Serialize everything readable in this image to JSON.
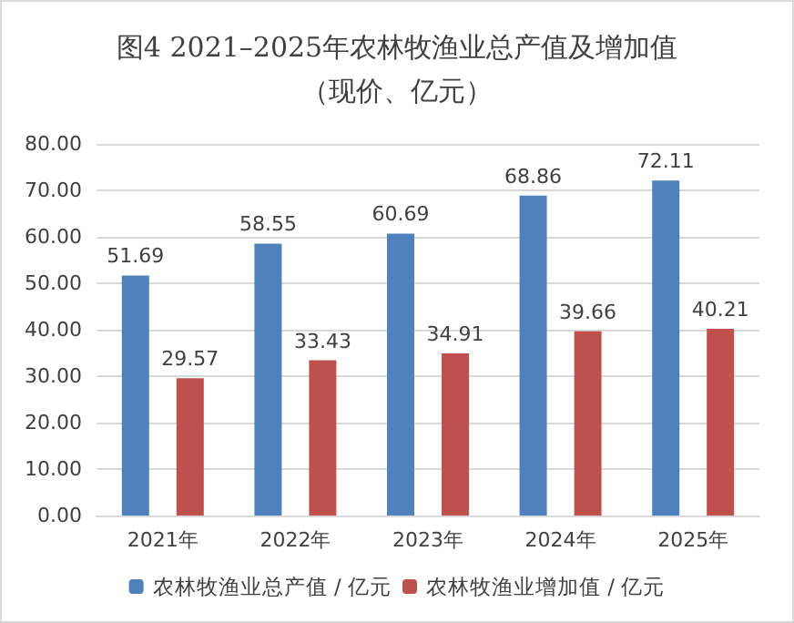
{
  "chart_data": {
    "type": "bar",
    "title": "图4 2021–2025年农林牧渔业总产值及增加值（现价、亿元）",
    "categories": [
      "2021年",
      "2022年",
      "2023年",
      "2024年",
      "2025年"
    ],
    "series": [
      {
        "name": "农林牧渔业总产值 / 亿元",
        "color": "#4f81bd",
        "values": [
          51.69,
          58.55,
          60.69,
          68.86,
          72.11
        ]
      },
      {
        "name": "农林牧渔业增加值 / 亿元",
        "color": "#c0504d",
        "values": [
          29.57,
          33.43,
          34.91,
          39.66,
          40.21
        ]
      }
    ],
    "ylim": [
      0,
      80
    ],
    "yticks": [
      {
        "value": 0,
        "label": "0.00"
      },
      {
        "value": 10,
        "label": "10.00"
      },
      {
        "value": 20,
        "label": "20.00"
      },
      {
        "value": 30,
        "label": "30.00"
      },
      {
        "value": 40,
        "label": "40.00"
      },
      {
        "value": 50,
        "label": "50.00"
      },
      {
        "value": 60,
        "label": "60.00"
      },
      {
        "value": 70,
        "label": "70.00"
      },
      {
        "value": 80,
        "label": "80.00"
      }
    ],
    "grid": "y",
    "legend": "bottom",
    "data_labels": true
  }
}
